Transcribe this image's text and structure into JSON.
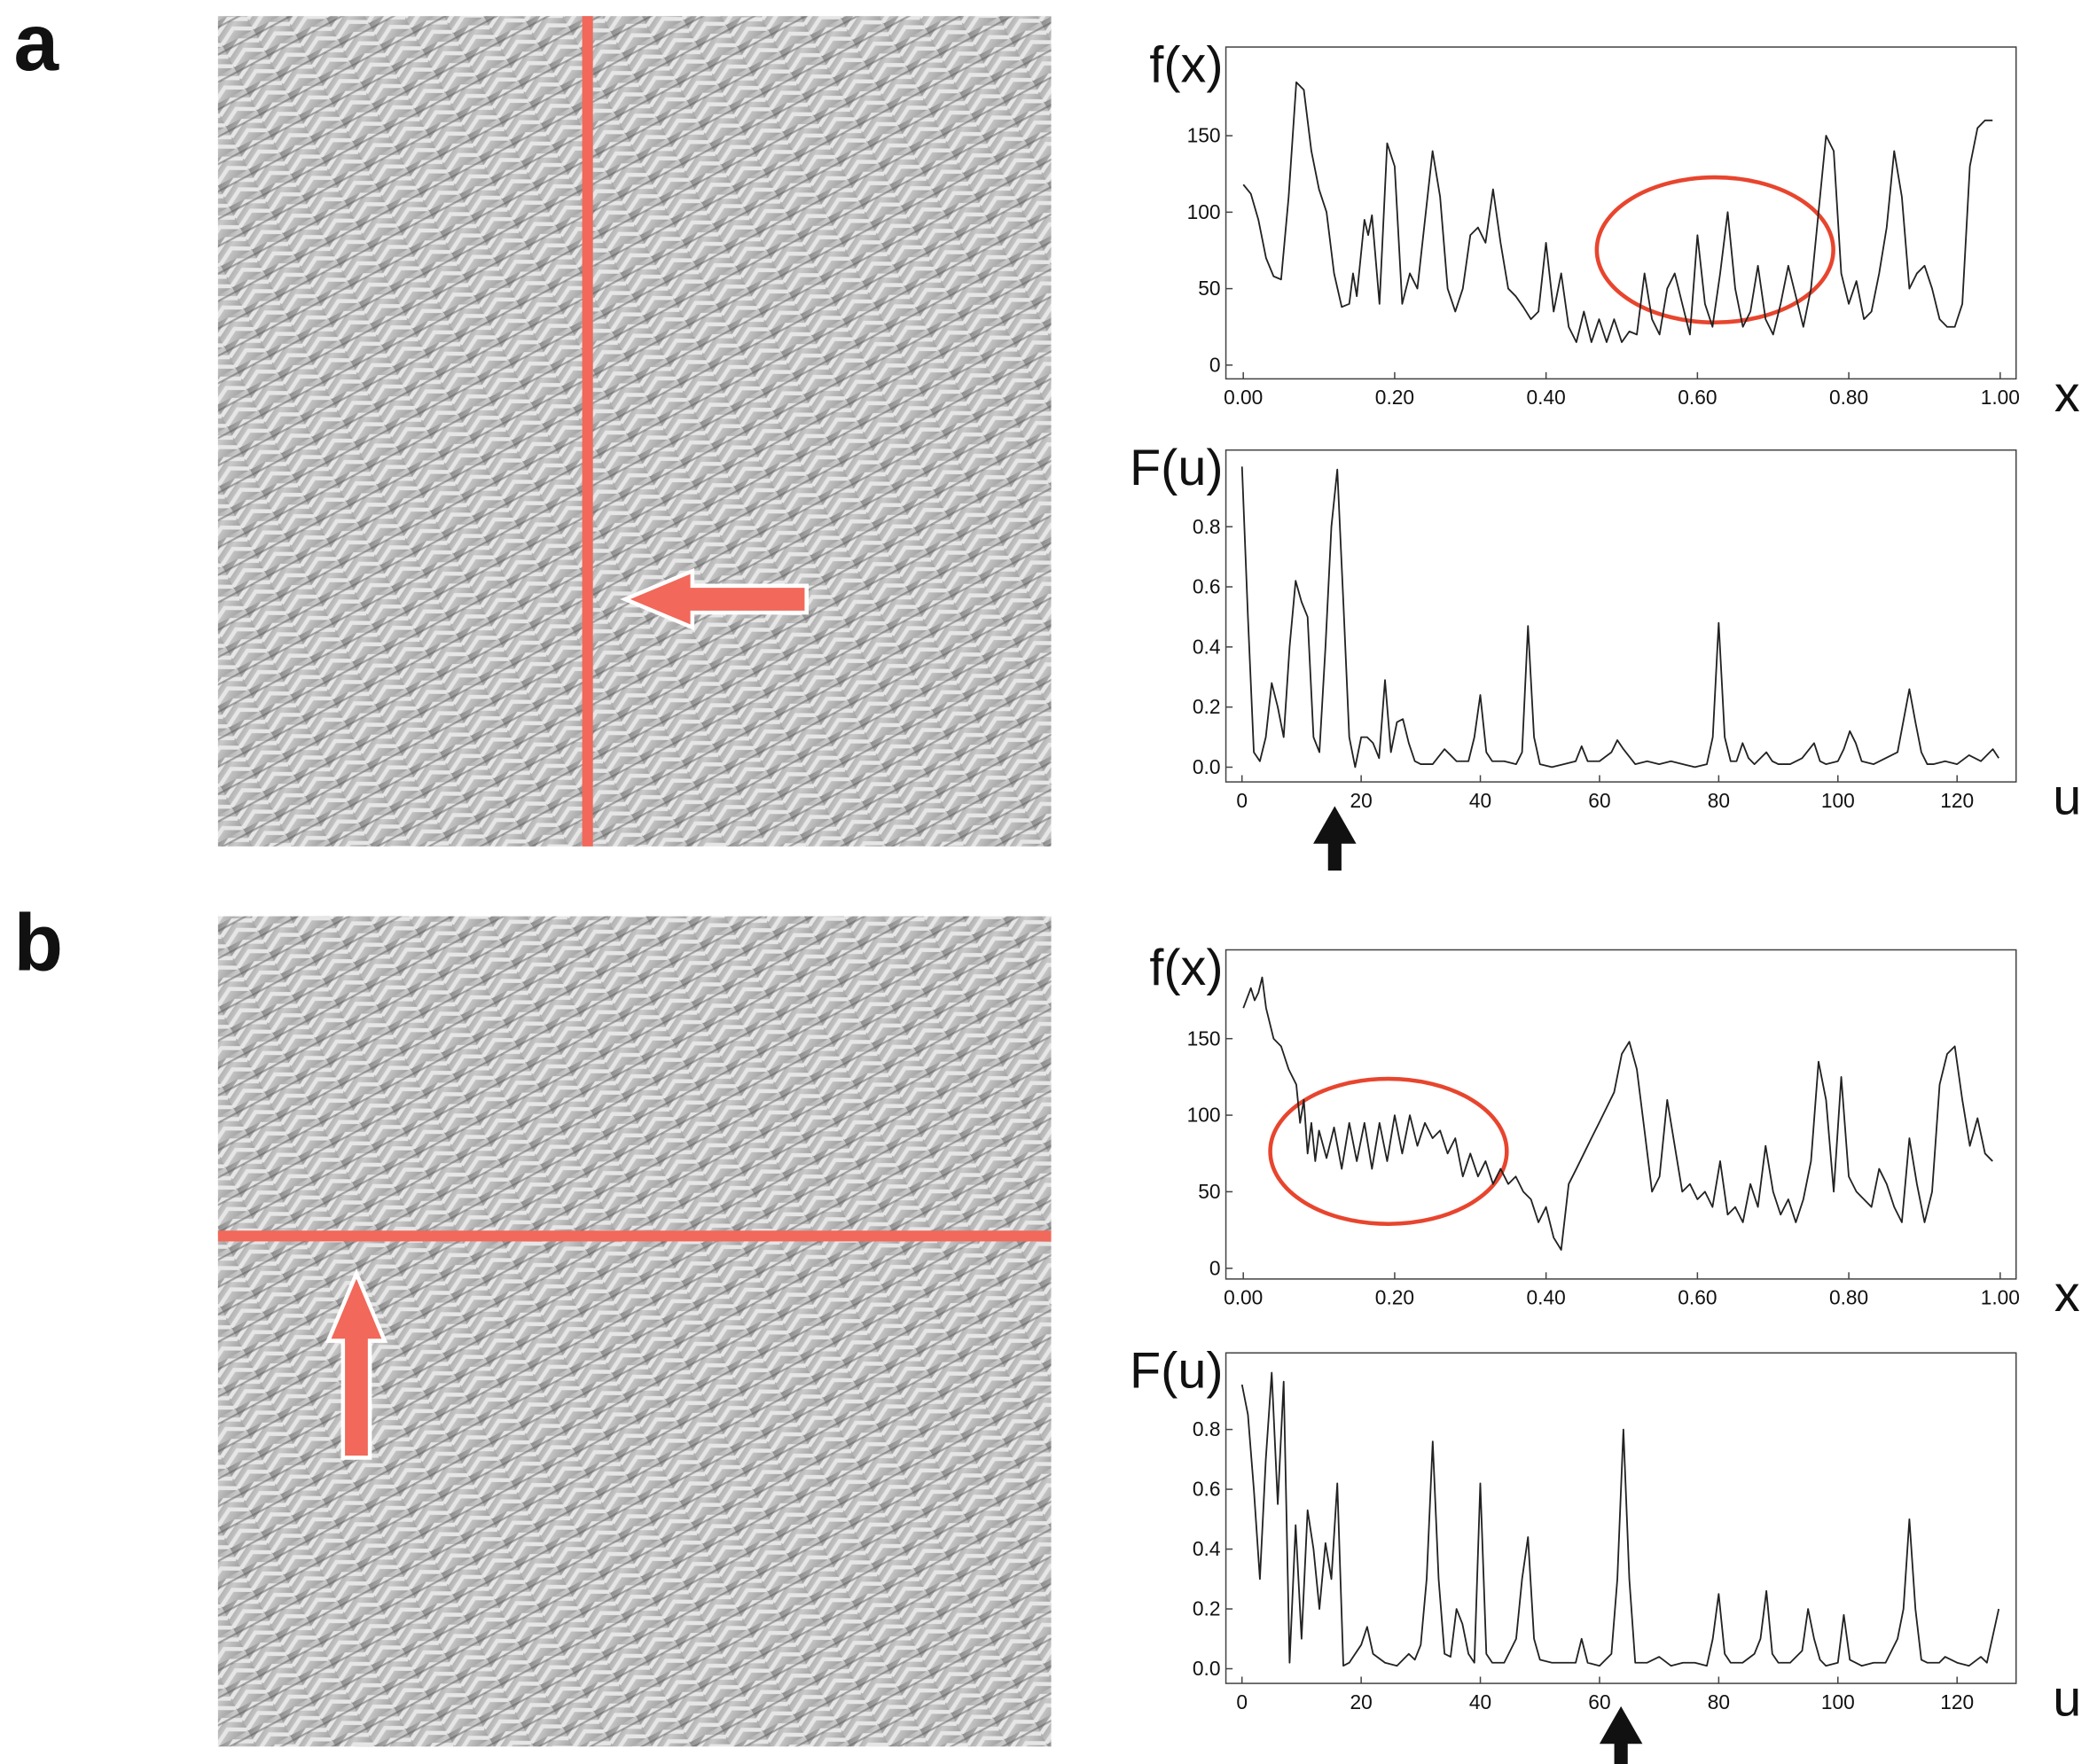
{
  "panel_labels": [
    "a",
    "b"
  ],
  "chart_data": [
    {
      "type": "line",
      "y_label": "f(x)",
      "x_label": "x",
      "color": "#222222",
      "x": [
        0,
        0.01,
        0.02,
        0.03,
        0.04,
        0.05,
        0.06,
        0.07,
        0.08,
        0.09,
        0.1,
        0.11,
        0.12,
        0.13,
        0.14,
        0.145,
        0.15,
        0.16,
        0.165,
        0.17,
        0.18,
        0.19,
        0.2,
        0.21,
        0.22,
        0.23,
        0.25,
        0.26,
        0.27,
        0.28,
        0.29,
        0.3,
        0.31,
        0.32,
        0.33,
        0.34,
        0.35,
        0.36,
        0.37,
        0.38,
        0.39,
        0.4,
        0.41,
        0.42,
        0.43,
        0.44,
        0.45,
        0.46,
        0.47,
        0.48,
        0.49,
        0.5,
        0.51,
        0.52,
        0.53,
        0.54,
        0.55,
        0.56,
        0.57,
        0.58,
        0.59,
        0.6,
        0.61,
        0.62,
        0.63,
        0.64,
        0.65,
        0.66,
        0.67,
        0.68,
        0.69,
        0.7,
        0.71,
        0.72,
        0.73,
        0.74,
        0.75,
        0.76,
        0.77,
        0.78,
        0.79,
        0.8,
        0.81,
        0.82,
        0.83,
        0.84,
        0.85,
        0.86,
        0.87,
        0.88,
        0.89,
        0.9,
        0.91,
        0.92,
        0.93,
        0.94,
        0.95,
        0.96,
        0.97,
        0.98,
        0.99
      ],
      "values": [
        118,
        112,
        95,
        70,
        58,
        56,
        110,
        185,
        180,
        140,
        115,
        100,
        60,
        38,
        40,
        60,
        45,
        95,
        85,
        98,
        40,
        145,
        130,
        40,
        60,
        50,
        140,
        110,
        50,
        35,
        50,
        85,
        90,
        80,
        115,
        80,
        50,
        45,
        38,
        30,
        35,
        80,
        35,
        60,
        25,
        15,
        35,
        15,
        30,
        15,
        30,
        15,
        22,
        20,
        60,
        30,
        20,
        50,
        60,
        40,
        20,
        85,
        40,
        25,
        60,
        100,
        50,
        25,
        35,
        65,
        30,
        20,
        40,
        65,
        45,
        25,
        50,
        100,
        150,
        140,
        60,
        40,
        55,
        30,
        35,
        60,
        90,
        140,
        110,
        50,
        60,
        65,
        50,
        30,
        25,
        25,
        40,
        130,
        155,
        160,
        160
      ],
      "xlim": [
        -0.023,
        1.021
      ],
      "ylim": [
        -9,
        208
      ],
      "xticks": [
        {
          "value": 0,
          "label": "0.00"
        },
        {
          "value": 0.2,
          "label": "0.20"
        },
        {
          "value": 0.4,
          "label": "0.40"
        },
        {
          "value": 0.6,
          "label": "0.60"
        },
        {
          "value": 0.8,
          "label": "0.80"
        },
        {
          "value": 1,
          "label": "1.00"
        }
      ],
      "yticks": [
        0,
        50,
        100,
        150
      ]
    },
    {
      "type": "line",
      "y_label": "F(u)",
      "x_label": "u",
      "color": "#222222",
      "x": [
        0,
        1,
        2,
        3,
        4,
        5,
        6,
        7,
        8,
        9,
        10,
        11,
        12,
        13,
        14,
        15,
        16,
        17,
        18,
        19,
        20,
        21,
        22,
        23,
        24,
        25,
        26,
        27,
        28,
        29,
        30,
        32,
        34,
        35,
        36,
        38,
        39,
        40,
        41,
        42,
        44,
        46,
        47,
        48,
        49,
        50,
        52,
        54,
        56,
        57,
        58,
        60,
        62,
        63,
        64,
        66,
        68,
        70,
        72,
        74,
        76,
        78,
        79,
        80,
        81,
        82,
        83,
        84,
        85,
        86,
        88,
        89,
        90,
        92,
        94,
        96,
        97,
        98,
        100,
        101,
        102,
        103,
        104,
        106,
        108,
        110,
        112,
        113,
        114,
        115,
        116,
        118,
        120,
        122,
        124,
        126,
        127
      ],
      "values": [
        1.0,
        0.5,
        0.05,
        0.02,
        0.1,
        0.28,
        0.2,
        0.1,
        0.4,
        0.62,
        0.55,
        0.5,
        0.1,
        0.05,
        0.4,
        0.8,
        0.99,
        0.55,
        0.1,
        0.0,
        0.1,
        0.1,
        0.08,
        0.03,
        0.29,
        0.05,
        0.15,
        0.16,
        0.08,
        0.02,
        0.01,
        0.01,
        0.06,
        0.04,
        0.02,
        0.02,
        0.1,
        0.24,
        0.05,
        0.02,
        0.02,
        0.01,
        0.05,
        0.47,
        0.1,
        0.01,
        0.0,
        0.01,
        0.02,
        0.07,
        0.02,
        0.02,
        0.05,
        0.09,
        0.06,
        0.01,
        0.02,
        0.01,
        0.02,
        0.01,
        0.0,
        0.01,
        0.1,
        0.48,
        0.1,
        0.02,
        0.02,
        0.08,
        0.03,
        0.01,
        0.05,
        0.02,
        0.01,
        0.01,
        0.03,
        0.08,
        0.02,
        0.01,
        0.02,
        0.06,
        0.12,
        0.08,
        0.02,
        0.01,
        0.03,
        0.05,
        0.26,
        0.15,
        0.05,
        0.01,
        0.01,
        0.02,
        0.01,
        0.04,
        0.02,
        0.06,
        0.03
      ],
      "xlim": [
        -2.7,
        129.9
      ],
      "ylim": [
        -0.049,
        1.055
      ],
      "xticks": [
        0,
        20,
        40,
        60,
        80,
        100,
        120
      ],
      "yticks": [
        {
          "value": 0,
          "label": "0.0"
        },
        0.2,
        0.4,
        0.6,
        0.8
      ]
    },
    {
      "type": "line",
      "y_label": "f(x)",
      "x_label": "x",
      "color": "#222222",
      "x": [
        0,
        0.01,
        0.015,
        0.02,
        0.025,
        0.03,
        0.04,
        0.05,
        0.06,
        0.07,
        0.075,
        0.08,
        0.085,
        0.09,
        0.095,
        0.1,
        0.11,
        0.12,
        0.13,
        0.14,
        0.15,
        0.16,
        0.17,
        0.18,
        0.19,
        0.2,
        0.21,
        0.22,
        0.23,
        0.24,
        0.25,
        0.26,
        0.27,
        0.28,
        0.29,
        0.3,
        0.31,
        0.32,
        0.33,
        0.34,
        0.35,
        0.36,
        0.37,
        0.38,
        0.39,
        0.4,
        0.41,
        0.42,
        0.43,
        0.44,
        0.45,
        0.46,
        0.47,
        0.48,
        0.49,
        0.5,
        0.51,
        0.52,
        0.53,
        0.54,
        0.55,
        0.56,
        0.57,
        0.58,
        0.59,
        0.6,
        0.61,
        0.62,
        0.63,
        0.64,
        0.65,
        0.66,
        0.67,
        0.68,
        0.69,
        0.7,
        0.71,
        0.72,
        0.73,
        0.74,
        0.75,
        0.76,
        0.77,
        0.78,
        0.79,
        0.8,
        0.81,
        0.82,
        0.83,
        0.84,
        0.85,
        0.86,
        0.87,
        0.88,
        0.89,
        0.9,
        0.91,
        0.92,
        0.93,
        0.94,
        0.95,
        0.96,
        0.97,
        0.98,
        0.99
      ],
      "values": [
        170,
        183,
        175,
        180,
        190,
        170,
        150,
        145,
        130,
        120,
        95,
        110,
        75,
        95,
        70,
        90,
        72,
        92,
        65,
        95,
        70,
        95,
        65,
        95,
        70,
        100,
        75,
        100,
        80,
        95,
        85,
        90,
        75,
        85,
        60,
        75,
        60,
        70,
        55,
        65,
        55,
        60,
        50,
        45,
        30,
        40,
        20,
        12,
        55,
        65,
        75,
        85,
        95,
        105,
        115,
        140,
        148,
        130,
        90,
        50,
        60,
        110,
        80,
        50,
        55,
        45,
        50,
        40,
        70,
        35,
        40,
        30,
        55,
        40,
        80,
        50,
        35,
        45,
        30,
        45,
        70,
        135,
        110,
        50,
        125,
        60,
        50,
        45,
        40,
        65,
        55,
        40,
        30,
        85,
        55,
        30,
        50,
        120,
        140,
        145,
        110,
        80,
        98,
        75,
        70
      ],
      "xlim": [
        -0.023,
        1.021
      ],
      "ylim": [
        -7,
        208
      ],
      "xticks": [
        {
          "value": 0,
          "label": "0.00"
        },
        {
          "value": 0.2,
          "label": "0.20"
        },
        {
          "value": 0.4,
          "label": "0.40"
        },
        {
          "value": 0.6,
          "label": "0.60"
        },
        {
          "value": 0.8,
          "label": "0.80"
        },
        {
          "value": 1,
          "label": "1.00"
        }
      ],
      "yticks": [
        0,
        50,
        100,
        150
      ]
    },
    {
      "type": "line",
      "y_label": "F(u)",
      "x_label": "u",
      "color": "#222222",
      "x": [
        0,
        1,
        2,
        3,
        4,
        5,
        6,
        7,
        8,
        9,
        10,
        11,
        12,
        13,
        14,
        15,
        16,
        17,
        18,
        19,
        20,
        21,
        22,
        24,
        26,
        28,
        29,
        30,
        31,
        32,
        33,
        34,
        35,
        36,
        37,
        38,
        39,
        40,
        41,
        42,
        44,
        46,
        47,
        48,
        49,
        50,
        52,
        54,
        56,
        57,
        58,
        60,
        62,
        63,
        64,
        65,
        66,
        68,
        70,
        72,
        74,
        76,
        78,
        79,
        80,
        81,
        82,
        84,
        86,
        87,
        88,
        89,
        90,
        92,
        94,
        95,
        96,
        97,
        98,
        100,
        101,
        102,
        104,
        106,
        108,
        110,
        111,
        112,
        113,
        114,
        115,
        117,
        118,
        120,
        122,
        124,
        125,
        127
      ],
      "values": [
        0.95,
        0.85,
        0.6,
        0.3,
        0.7,
        0.99,
        0.55,
        0.96,
        0.02,
        0.48,
        0.1,
        0.53,
        0.4,
        0.2,
        0.42,
        0.3,
        0.62,
        0.01,
        0.02,
        0.05,
        0.08,
        0.14,
        0.05,
        0.02,
        0.01,
        0.05,
        0.03,
        0.08,
        0.3,
        0.76,
        0.3,
        0.05,
        0.04,
        0.2,
        0.15,
        0.05,
        0.02,
        0.62,
        0.05,
        0.02,
        0.02,
        0.1,
        0.3,
        0.44,
        0.1,
        0.03,
        0.02,
        0.02,
        0.02,
        0.1,
        0.02,
        0.01,
        0.05,
        0.3,
        0.8,
        0.3,
        0.02,
        0.02,
        0.04,
        0.01,
        0.02,
        0.02,
        0.01,
        0.1,
        0.25,
        0.05,
        0.02,
        0.02,
        0.05,
        0.1,
        0.26,
        0.05,
        0.02,
        0.02,
        0.06,
        0.2,
        0.1,
        0.03,
        0.01,
        0.02,
        0.18,
        0.03,
        0.01,
        0.02,
        0.02,
        0.1,
        0.2,
        0.5,
        0.2,
        0.03,
        0.02,
        0.02,
        0.04,
        0.02,
        0.01,
        0.04,
        0.02,
        0.2
      ],
      "xlim": [
        -2.7,
        129.9
      ],
      "ylim": [
        -0.049,
        1.056
      ],
      "xticks": [
        0,
        20,
        40,
        60,
        80,
        100,
        120
      ],
      "yticks": [
        {
          "value": 0,
          "label": "0.0"
        },
        0.2,
        0.4,
        0.6,
        0.8
      ]
    }
  ]
}
